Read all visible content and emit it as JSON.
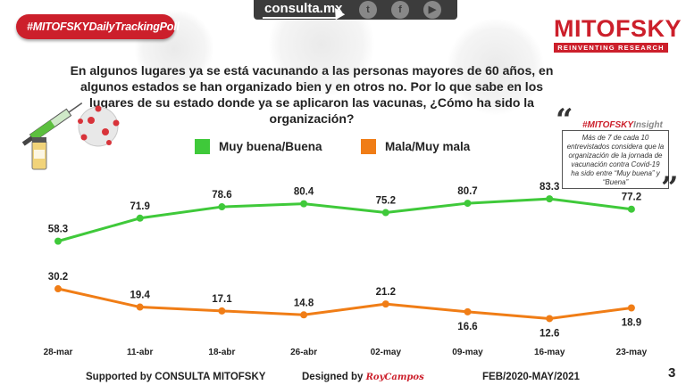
{
  "header": {
    "badge": "#MITOFSKYDailyTrackingPoll",
    "site": "consulta.mx",
    "social_icons": [
      "twitter-icon",
      "facebook-icon",
      "youtube-icon"
    ],
    "logo_name": "MITOFSKY",
    "logo_tagline": "REINVENTING RESEARCH"
  },
  "question": "En algunos lugares ya se está vacunando a las personas mayores de 60 años, en algunos estados se han organizado bien y en otros no. Por lo que sabe en los lugares de su estado donde ya se aplicaron las vacunas, ¿Cómo ha sido la organización?",
  "insight": {
    "tag_main": "#MITOFSKY",
    "tag_suffix": "Insight",
    "text": "Más de 7 de cada 10 entrevistados considera que la organización de la jornada de vacunación contra Covid-19 ha sido  entre  “Muy buena” y “Buena”"
  },
  "chart_data": {
    "type": "line",
    "categories": [
      "28-mar",
      "11-abr",
      "18-abr",
      "26-abr",
      "02-may",
      "09-may",
      "16-may",
      "23-may"
    ],
    "series": [
      {
        "name": "Muy buena/Buena",
        "color": "#3fc93a",
        "values": [
          58.3,
          71.9,
          78.6,
          80.4,
          75.2,
          80.7,
          83.3,
          77.2
        ]
      },
      {
        "name": "Mala/Muy mala",
        "color": "#f07d16",
        "values": [
          30.2,
          19.4,
          17.1,
          14.8,
          21.2,
          16.6,
          12.6,
          18.9
        ]
      }
    ],
    "legend": "top"
  },
  "footer": {
    "supported": "Supported by   CONSULTA  MITOFSKY",
    "designed_label": "Designed by",
    "designed_sig": "RoyCampos",
    "period": "FEB/2020-MAY/2021",
    "page": "3"
  }
}
